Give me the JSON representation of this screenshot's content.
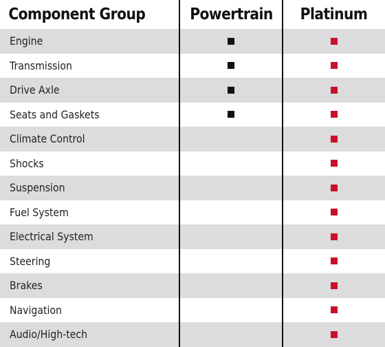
{
  "header": {
    "group_label": "Component Group",
    "powertrain_label": "Powertrain",
    "platinum_label": "Platinum"
  },
  "colors": {
    "powertrain_mark": "#111111",
    "platinum_mark": "#c8102e",
    "row_shade": "#dcdcdc",
    "divider": "#111111"
  },
  "rows": [
    {
      "name": "Engine",
      "powertrain": true,
      "platinum": true
    },
    {
      "name": "Transmission",
      "powertrain": true,
      "platinum": true
    },
    {
      "name": "Drive Axle",
      "powertrain": true,
      "platinum": true
    },
    {
      "name": "Seats and Gaskets",
      "powertrain": true,
      "platinum": true
    },
    {
      "name": "Climate Control",
      "powertrain": false,
      "platinum": true
    },
    {
      "name": "Shocks",
      "powertrain": false,
      "platinum": true
    },
    {
      "name": "Suspension",
      "powertrain": false,
      "platinum": true
    },
    {
      "name": "Fuel System",
      "powertrain": false,
      "platinum": true
    },
    {
      "name": "Electrical System",
      "powertrain": false,
      "platinum": true
    },
    {
      "name": "Steering",
      "powertrain": false,
      "platinum": true
    },
    {
      "name": "Brakes",
      "powertrain": false,
      "platinum": true
    },
    {
      "name": "Navigation",
      "powertrain": false,
      "platinum": true
    },
    {
      "name": "Audio/High-tech",
      "powertrain": false,
      "platinum": true
    }
  ]
}
